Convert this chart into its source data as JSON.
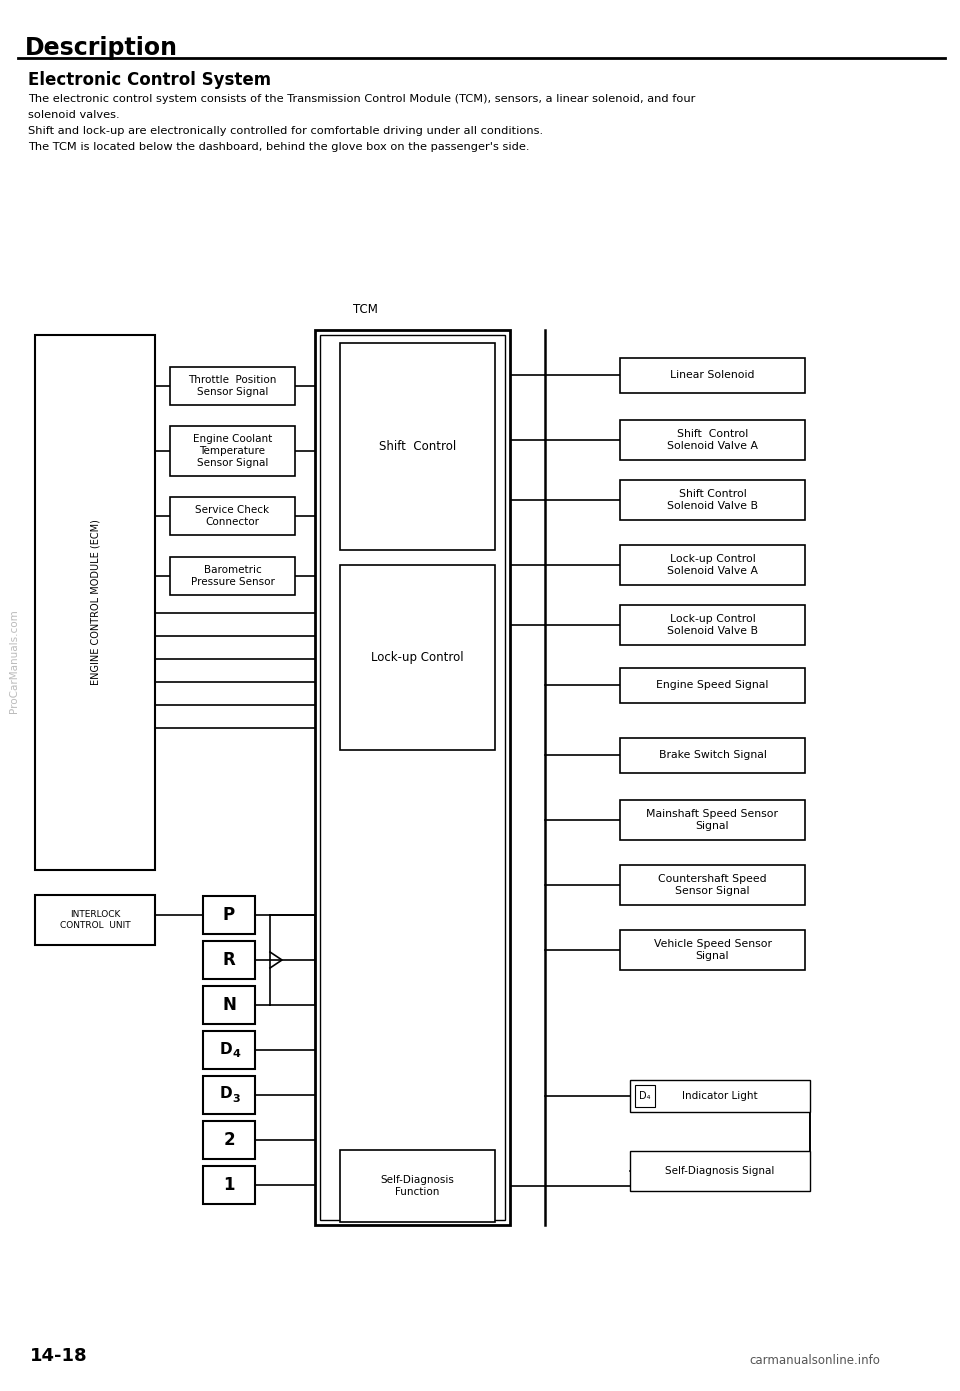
{
  "title": "Description",
  "subtitle": "Electronic Control System",
  "body_text": [
    "The electronic control system consists of the Transmission Control Module (TCM), sensors, a linear solenoid, and four",
    "solenoid valves.",
    "Shift and lock-up are electronically controlled for comfortable driving under all conditions.",
    "The TCM is located below the dashboard, behind the glove box on the passenger's side."
  ],
  "tcm_label": "TCM",
  "ecm_label": "ENGINE CONTROL MODULE (ECM)",
  "interlock_label": "INTERLOCK\nCONTROL  UNIT",
  "left_input_boxes": [
    "Throttle  Position\nSensor Signal",
    "Engine Coolant\nTemperature\nSensor Signal",
    "Service Check\nConnector",
    "Barometric\nPressure Sensor"
  ],
  "tcm_internal_boxes": [
    "Shift  Control",
    "Lock-up Control"
  ],
  "right_output_boxes": [
    "Linear Solenoid",
    "Shift  Control\nSolenoid Valve A",
    "Shift Control\nSolenoid Valve B",
    "Lock-up Control\nSolenoid Valve A",
    "Lock-up Control\nSolenoid Valve B",
    "Engine Speed Signal",
    "Brake Switch Signal",
    "Mainshaft Speed Sensor\nSignal",
    "Countershaft Speed\nSensor Signal",
    "Vehicle Speed Sensor\nSignal"
  ],
  "gear_positions": [
    "P",
    "R",
    "N",
    "D4",
    "D3",
    "2",
    "1"
  ],
  "self_diag_box_tcm": "Self-Diagnosis\nFunction",
  "d4_indicator_text": "D₄ Indicator Light",
  "self_diag_signal": "Self-Diagnosis Signal",
  "page_number": "14-18",
  "watermark": "ProCarManuals.com",
  "footer": "carmanualsonline.info",
  "bg_color": "#ffffff"
}
